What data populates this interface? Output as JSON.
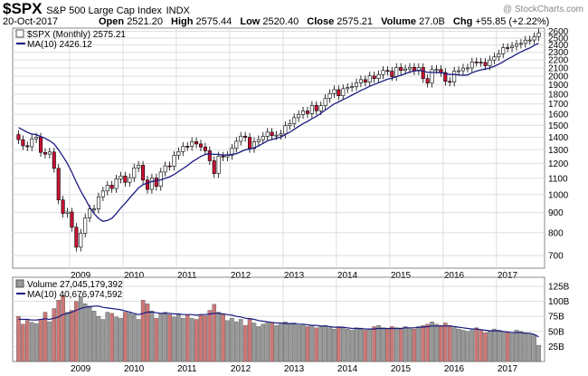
{
  "header": {
    "symbol": "$SPX",
    "description": "S&P 500 Large Cap Index",
    "exchange": "INDX",
    "date": "20-Oct-2017",
    "watermark": "@ StockCharts.com",
    "open_label": "Open",
    "open": "2521.20",
    "high_label": "High",
    "high": "2575.44",
    "low_label": "Low",
    "low": "2520.40",
    "close_label": "Close",
    "close": "2575.21",
    "volume_label": "Volume",
    "volume": "27.0B",
    "chg_label": "Chg",
    "chg": "+55.85 (+2.22%)"
  },
  "price_legend": {
    "series": "$SPX (Monthly) 2575.21",
    "ma": "MA(10) 2426.12"
  },
  "volume_legend": {
    "series": "Volume 27,045,179,392",
    "ma": "MA(10) 40,676,974,592"
  },
  "colors": {
    "up": "#ffffff",
    "down": "#cc1133",
    "ma": "#1a1a80",
    "vol_up": "#999999",
    "vol_down": "#cc7777",
    "grid": "#dddddd"
  },
  "chart_data": [
    {
      "type": "candlestick",
      "title": "$SPX (Monthly)",
      "scale": "log",
      "ylim": [
        650,
        2650
      ],
      "yticks": [
        700,
        800,
        900,
        1000,
        1100,
        1200,
        1300,
        1400,
        1500,
        1600,
        1700,
        1800,
        1900,
        2000,
        2100,
        2200,
        2300,
        2400,
        2500,
        2600
      ],
      "x_tick_labels": [
        "2009",
        "2010",
        "2011",
        "2012",
        "2013",
        "2014",
        "2015",
        "2016",
        "2017"
      ],
      "x_tick_month_index": [
        11,
        23,
        35,
        47,
        59,
        71,
        83,
        95,
        107
      ],
      "x_axis_note": "monthly bars, first bar Jan 2008",
      "closes": [
        1379,
        1331,
        1323,
        1386,
        1400,
        1280,
        1267,
        1283,
        1166,
        969,
        896,
        903,
        826,
        735,
        798,
        873,
        919,
        919,
        987,
        1021,
        1057,
        1036,
        1096,
        1115,
        1074,
        1104,
        1169,
        1187,
        1089,
        1031,
        1102,
        1049,
        1141,
        1183,
        1181,
        1258,
        1286,
        1327,
        1326,
        1364,
        1345,
        1321,
        1292,
        1219,
        1131,
        1253,
        1247,
        1258,
        1312,
        1366,
        1408,
        1398,
        1310,
        1362,
        1379,
        1407,
        1441,
        1412,
        1416,
        1426,
        1498,
        1515,
        1569,
        1598,
        1631,
        1606,
        1686,
        1633,
        1682,
        1757,
        1806,
        1848,
        1783,
        1859,
        1872,
        1884,
        1924,
        1960,
        1931,
        2003,
        1972,
        2018,
        2068,
        2059,
        1995,
        2105,
        2068,
        2086,
        2107,
        2063,
        2104,
        1972,
        1920,
        2079,
        2080,
        2044,
        1940,
        1932,
        2060,
        2065,
        2097,
        2099,
        2174,
        2171,
        2168,
        2126,
        2199,
        2239,
        2279,
        2364,
        2363,
        2384,
        2412,
        2423,
        2470,
        2472,
        2519,
        2575
      ],
      "ma10_start_month_index": 0,
      "ma10": [
        1480,
        1460,
        1440,
        1425,
        1420,
        1405,
        1390,
        1370,
        1345,
        1300,
        1250,
        1200,
        1140,
        1075,
        1020,
        975,
        930,
        895,
        870,
        855,
        860,
        870,
        895,
        925,
        950,
        980,
        1010,
        1040,
        1060,
        1070,
        1080,
        1085,
        1090,
        1100,
        1110,
        1125,
        1145,
        1165,
        1185,
        1210,
        1230,
        1250,
        1265,
        1270,
        1265,
        1265,
        1260,
        1260,
        1265,
        1270,
        1285,
        1300,
        1305,
        1315,
        1330,
        1350,
        1370,
        1380,
        1390,
        1400,
        1420,
        1440,
        1465,
        1490,
        1515,
        1535,
        1560,
        1580,
        1610,
        1640,
        1670,
        1700,
        1720,
        1745,
        1765,
        1790,
        1815,
        1840,
        1860,
        1885,
        1905,
        1925,
        1945,
        1965,
        1975,
        1995,
        2010,
        2030,
        2050,
        2060,
        2070,
        2060,
        2045,
        2045,
        2045,
        2040,
        2030,
        2020,
        2020,
        2015,
        2010,
        2015,
        2040,
        2060,
        2075,
        2085,
        2100,
        2120,
        2145,
        2175,
        2210,
        2240,
        2275,
        2305,
        2335,
        2360,
        2395,
        2426
      ]
    },
    {
      "type": "bar",
      "title": "Volume",
      "units": "billions",
      "ylim": [
        0,
        140
      ],
      "yticks": [
        25,
        50,
        75,
        100,
        125
      ],
      "ytick_labels": [
        "25B",
        "50B",
        "75B",
        "100B",
        "125B"
      ],
      "x_tick_labels": [
        "2009",
        "2010",
        "2011",
        "2012",
        "2013",
        "2014",
        "2015",
        "2016",
        "2017"
      ],
      "values": [
        75,
        62,
        68,
        65,
        63,
        70,
        82,
        66,
        88,
        102,
        110,
        82,
        85,
        100,
        108,
        96,
        92,
        84,
        75,
        70,
        82,
        80,
        74,
        72,
        82,
        80,
        78,
        70,
        102,
        96,
        84,
        72,
        80,
        82,
        78,
        74,
        78,
        72,
        78,
        72,
        70,
        78,
        76,
        85,
        95,
        82,
        78,
        68,
        72,
        66,
        70,
        60,
        72,
        64,
        58,
        62,
        66,
        64,
        60,
        62,
        66,
        62,
        64,
        60,
        62,
        58,
        60,
        56,
        58,
        60,
        56,
        54,
        58,
        56,
        54,
        52,
        56,
        54,
        52,
        54,
        58,
        60,
        56,
        54,
        58,
        56,
        54,
        58,
        56,
        54,
        58,
        60,
        62,
        66,
        62,
        60,
        64,
        60,
        56,
        54,
        52,
        50,
        52,
        56,
        52,
        48,
        50,
        54,
        52,
        50,
        48,
        46,
        52,
        50,
        48,
        46,
        44,
        27
      ],
      "ma10": [
        70,
        70,
        70,
        69,
        69,
        70,
        71,
        70,
        72,
        74,
        78,
        80,
        82,
        85,
        88,
        90,
        91,
        92,
        92,
        90,
        89,
        88,
        87,
        86,
        84,
        82,
        80,
        78,
        80,
        82,
        82,
        81,
        80,
        80,
        80,
        79,
        79,
        78,
        78,
        78,
        77,
        78,
        78,
        79,
        80,
        80,
        79,
        78,
        77,
        75,
        74,
        72,
        71,
        70,
        68,
        67,
        66,
        65,
        64,
        64,
        63,
        63,
        63,
        62,
        62,
        61,
        60,
        60,
        59,
        59,
        58,
        57,
        57,
        57,
        56,
        55,
        55,
        55,
        54,
        54,
        54,
        55,
        55,
        55,
        55,
        55,
        55,
        56,
        56,
        56,
        57,
        57,
        58,
        59,
        59,
        59,
        59,
        59,
        58,
        57,
        56,
        55,
        54,
        54,
        53,
        52,
        51,
        51,
        51,
        50,
        49,
        48,
        48,
        48,
        47,
        47,
        45,
        41
      ]
    }
  ]
}
